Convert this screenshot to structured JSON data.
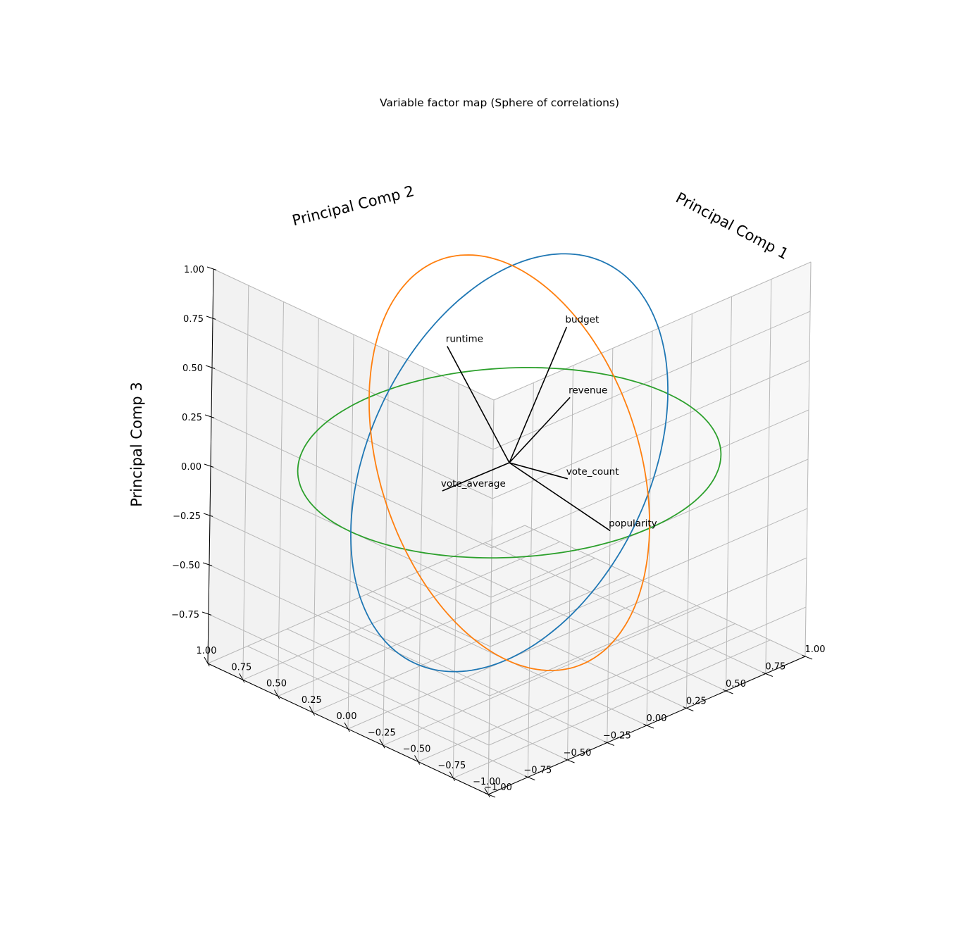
{
  "chart_data": {
    "type": "3d-vector-plot",
    "title": "Variable factor map (Sphere of correlations)",
    "axes": {
      "x": {
        "label": "Principal Comp 1",
        "range": [
          -1,
          1
        ],
        "ticks": [
          "−1.00",
          "−0.75",
          "−0.50",
          "−0.25",
          "0.00",
          "0.25",
          "0.50",
          "0.75",
          "1.00"
        ]
      },
      "y": {
        "label": "Principal Comp 2",
        "range": [
          -1,
          1
        ],
        "ticks": [
          "−1.00",
          "−0.75",
          "−0.50",
          "−0.25",
          "0.00",
          "0.25",
          "0.50",
          "0.75",
          "1.00"
        ]
      },
      "z": {
        "label": "Principal Comp 3",
        "range": [
          -1,
          1
        ],
        "ticks": [
          "−0.75",
          "−0.50",
          "−0.25",
          "0.00",
          "0.25",
          "0.50",
          "0.75",
          "1.00"
        ]
      }
    },
    "grid": true,
    "unit_circles": [
      {
        "plane": "xy",
        "color": "#2ca02c"
      },
      {
        "plane": "xz",
        "color": "#1f77b4"
      },
      {
        "plane": "yz",
        "color": "#ff7f0e"
      }
    ],
    "vectors": [
      {
        "label": "popularity",
        "coords": [
          0.27,
          -0.42,
          0.3
        ]
      },
      {
        "label": "vote_count",
        "coords": [
          0.3,
          -0.08,
          0.16
        ]
      },
      {
        "label": "revenue",
        "coords": [
          0.46,
          0.09,
          -0.14
        ]
      },
      {
        "label": "budget",
        "coords": [
          0.54,
          0.21,
          -0.43
        ]
      },
      {
        "label": "vote_average",
        "coords": [
          -0.36,
          0.07,
          0.04
        ]
      },
      {
        "label": "runtime",
        "coords": [
          -0.36,
          0.05,
          -0.7
        ]
      }
    ],
    "vector_color": "#000000"
  }
}
